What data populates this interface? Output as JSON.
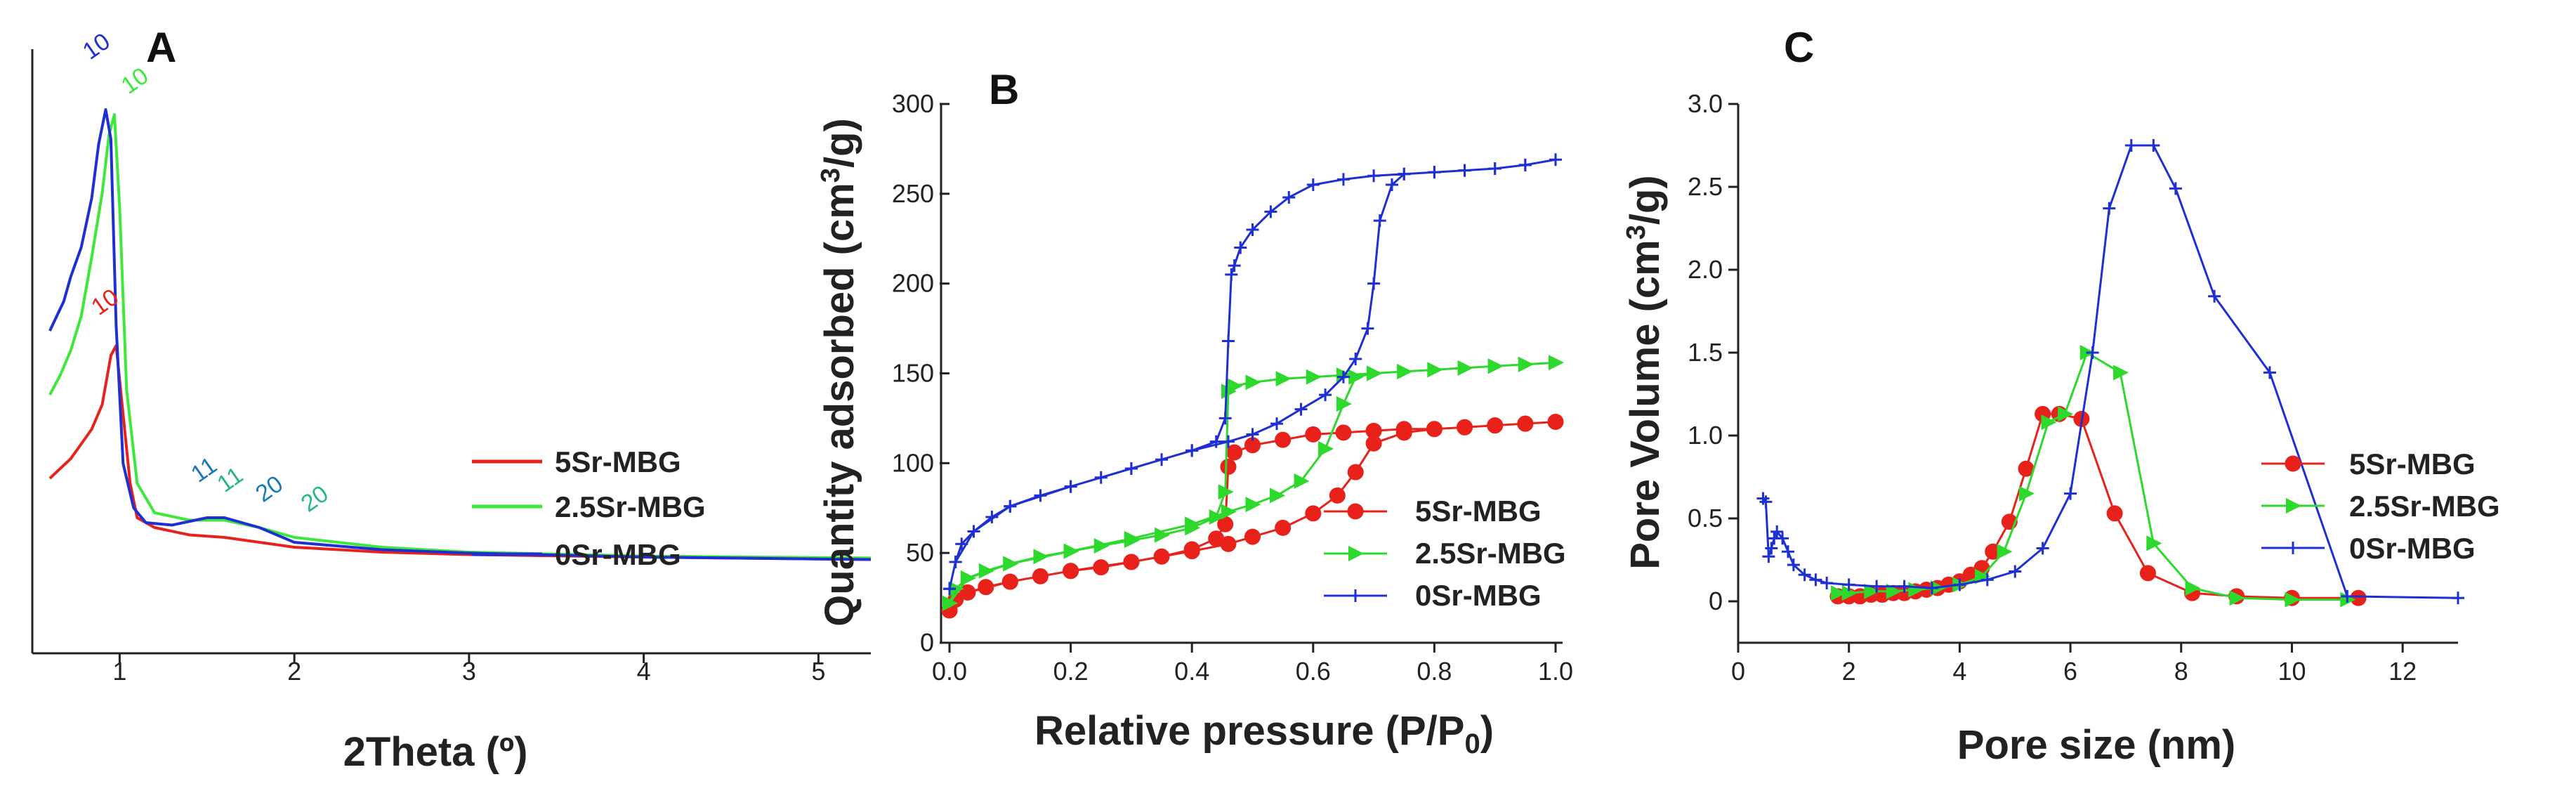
{
  "chart_data": [
    {
      "panel": "A",
      "type": "line",
      "xlabel": "2Theta (º)",
      "ylabel": "",
      "xlim": [
        0.5,
        5.3
      ],
      "xticks": [
        1,
        2,
        3,
        4,
        5
      ],
      "yticks": [],
      "legend_position": "right",
      "series": [
        {
          "name": "5Sr-MBG",
          "color": "#e8221b",
          "x": [
            0.6,
            0.66,
            0.72,
            0.78,
            0.84,
            0.9,
            0.95,
            0.98,
            1.02,
            1.06,
            1.1,
            1.2,
            1.4,
            1.6,
            1.8,
            2.0,
            2.5,
            3.0,
            4.0,
            5.3
          ],
          "y": [
            0.27,
            0.29,
            0.31,
            0.34,
            0.37,
            0.42,
            0.52,
            0.54,
            0.4,
            0.26,
            0.19,
            0.17,
            0.155,
            0.15,
            0.14,
            0.13,
            0.12,
            0.115,
            0.11,
            0.105
          ]
        },
        {
          "name": "2.5Sr-MBG",
          "color": "#3ee83a",
          "x": [
            0.6,
            0.66,
            0.72,
            0.78,
            0.84,
            0.9,
            0.94,
            0.97,
            1.0,
            1.04,
            1.1,
            1.2,
            1.4,
            1.6,
            1.8,
            2.0,
            2.5,
            3.0,
            4.0,
            5.3
          ],
          "y": [
            0.44,
            0.48,
            0.53,
            0.6,
            0.72,
            0.85,
            0.97,
            1.01,
            0.82,
            0.45,
            0.26,
            0.2,
            0.185,
            0.185,
            0.17,
            0.15,
            0.13,
            0.12,
            0.112,
            0.108
          ]
        },
        {
          "name": "0Sr-MBG",
          "color": "#1e2fd4",
          "x": [
            0.6,
            0.64,
            0.68,
            0.72,
            0.78,
            0.84,
            0.88,
            0.92,
            0.95,
            0.98,
            1.02,
            1.08,
            1.15,
            1.3,
            1.5,
            1.6,
            1.8,
            2.0,
            2.5,
            3.0,
            4.0,
            5.3
          ],
          "y": [
            0.57,
            0.6,
            0.63,
            0.68,
            0.74,
            0.84,
            0.95,
            1.02,
            0.96,
            0.58,
            0.3,
            0.21,
            0.18,
            0.175,
            0.19,
            0.19,
            0.17,
            0.14,
            0.125,
            0.118,
            0.11,
            0.105
          ]
        }
      ],
      "annotations": [
        {
          "text": "10",
          "x": 0.83,
          "y": 1.12,
          "color": "#1e2fd4"
        },
        {
          "text": "10",
          "x": 1.05,
          "y": 1.05,
          "color": "#3ee83a"
        },
        {
          "text": "10",
          "x": 0.88,
          "y": 0.6,
          "color": "#e8221b"
        },
        {
          "text": "11",
          "x": 1.45,
          "y": 0.26,
          "color": "#1a7ab8"
        },
        {
          "text": "11",
          "x": 1.6,
          "y": 0.24,
          "color": "#2bb58e"
        },
        {
          "text": "20",
          "x": 1.82,
          "y": 0.22,
          "color": "#1a7ab8"
        },
        {
          "text": "20",
          "x": 2.08,
          "y": 0.2,
          "color": "#2bb58e"
        }
      ]
    },
    {
      "panel": "B",
      "type": "line",
      "xlabel": "Relative pressure (P/P0)",
      "ylabel": "Quantity adsorbed (cm3/g)",
      "xlim": [
        0.0,
        1.0
      ],
      "ylim": [
        0,
        300
      ],
      "xticks": [
        0.0,
        0.2,
        0.4,
        0.6,
        0.8,
        1.0
      ],
      "yticks": [
        0,
        50,
        100,
        150,
        200,
        250,
        300
      ],
      "legend_position": "lower-right",
      "series": [
        {
          "name": "5Sr-MBG",
          "color": "#e8221b",
          "marker": "circle",
          "x": [
            0.0,
            0.01,
            0.03,
            0.06,
            0.1,
            0.15,
            0.2,
            0.25,
            0.3,
            0.35,
            0.4,
            0.44,
            0.455,
            0.46,
            0.47,
            0.5,
            0.55,
            0.6,
            0.65,
            0.7,
            0.75,
            0.8,
            0.85,
            0.9,
            0.95,
            1.0,
            0.95,
            0.9,
            0.85,
            0.8,
            0.75,
            0.7,
            0.67,
            0.64,
            0.6,
            0.55,
            0.5,
            0.46,
            0.4,
            0.3,
            0.2,
            0.1,
            0.03,
            0.0
          ],
          "y": [
            18,
            24,
            28,
            31,
            34,
            37,
            40,
            42,
            45,
            48,
            52,
            58,
            66,
            98,
            106,
            110,
            113,
            116,
            117,
            118,
            119,
            119,
            120,
            121,
            122,
            123,
            122,
            121,
            120,
            119,
            117,
            111,
            95,
            82,
            72,
            64,
            59,
            55,
            51,
            45,
            40,
            34,
            28,
            18
          ]
        },
        {
          "name": "2.5Sr-MBG",
          "color": "#2dd92d",
          "marker": "triangle-right",
          "x": [
            0.0,
            0.01,
            0.03,
            0.06,
            0.1,
            0.15,
            0.2,
            0.25,
            0.3,
            0.35,
            0.4,
            0.44,
            0.455,
            0.46,
            0.47,
            0.5,
            0.55,
            0.6,
            0.65,
            0.7,
            0.75,
            0.8,
            0.85,
            0.9,
            0.95,
            1.0,
            0.95,
            0.9,
            0.85,
            0.8,
            0.75,
            0.7,
            0.67,
            0.65,
            0.62,
            0.58,
            0.54,
            0.5,
            0.46,
            0.4,
            0.3,
            0.2,
            0.1,
            0.03,
            0.0
          ],
          "y": [
            22,
            30,
            36,
            40,
            44,
            48,
            51,
            54,
            57,
            60,
            64,
            70,
            84,
            140,
            143,
            145,
            147,
            148,
            149,
            150,
            151,
            152,
            153,
            154,
            155,
            156,
            155,
            154,
            153,
            152,
            151,
            150,
            148,
            133,
            108,
            90,
            82,
            77,
            73,
            66,
            58,
            51,
            44,
            36,
            22
          ]
        },
        {
          "name": "0Sr-MBG",
          "color": "#1e2fd4",
          "marker": "plus",
          "x": [
            0.0,
            0.01,
            0.02,
            0.04,
            0.07,
            0.1,
            0.15,
            0.2,
            0.25,
            0.3,
            0.35,
            0.4,
            0.44,
            0.455,
            0.46,
            0.465,
            0.47,
            0.48,
            0.5,
            0.53,
            0.56,
            0.6,
            0.65,
            0.7,
            0.75,
            0.8,
            0.85,
            0.9,
            0.95,
            1.0,
            0.95,
            0.9,
            0.85,
            0.8,
            0.75,
            0.73,
            0.71,
            0.7,
            0.69,
            0.67,
            0.65,
            0.62,
            0.58,
            0.54,
            0.5,
            0.46,
            0.4,
            0.3,
            0.2,
            0.1,
            0.04,
            0.01,
            0.0
          ],
          "y": [
            30,
            45,
            55,
            62,
            70,
            76,
            82,
            87,
            92,
            97,
            102,
            107,
            112,
            125,
            168,
            205,
            210,
            220,
            230,
            240,
            248,
            255,
            258,
            260,
            261,
            262,
            263,
            264,
            266,
            269,
            266,
            264,
            263,
            262,
            261,
            255,
            235,
            200,
            175,
            158,
            148,
            138,
            130,
            122,
            116,
            112,
            107,
            97,
            87,
            76,
            62,
            45,
            30
          ]
        }
      ]
    },
    {
      "panel": "C",
      "type": "line",
      "xlabel": "Pore size (nm)",
      "ylabel": "Pore Volume (cm3/g)",
      "xlim": [
        0,
        13
      ],
      "ylim": [
        -0.25,
        3.0
      ],
      "xticks": [
        0,
        2,
        4,
        6,
        8,
        10,
        12
      ],
      "yticks": [
        0,
        0.5,
        1.0,
        1.5,
        2.0,
        2.5,
        3.0
      ],
      "legend_position": "right",
      "series": [
        {
          "name": "5Sr-MBG",
          "color": "#e8221b",
          "marker": "circle",
          "x": [
            1.8,
            2.0,
            2.2,
            2.4,
            2.6,
            2.8,
            3.0,
            3.2,
            3.4,
            3.6,
            3.8,
            4.0,
            4.2,
            4.4,
            4.6,
            4.9,
            5.2,
            5.5,
            5.8,
            6.2,
            6.8,
            7.4,
            8.2,
            9.0,
            10.0,
            11.2
          ],
          "y": [
            0.03,
            0.03,
            0.03,
            0.04,
            0.04,
            0.05,
            0.05,
            0.06,
            0.07,
            0.08,
            0.1,
            0.12,
            0.16,
            0.2,
            0.3,
            0.48,
            0.8,
            1.13,
            1.13,
            1.1,
            0.53,
            0.17,
            0.05,
            0.03,
            0.02,
            0.02
          ]
        },
        {
          "name": "2.5Sr-MBG",
          "color": "#2dd92d",
          "marker": "triangle-right",
          "x": [
            1.8,
            2.0,
            2.4,
            2.8,
            3.2,
            3.6,
            4.0,
            4.4,
            4.8,
            5.2,
            5.6,
            5.9,
            6.3,
            6.9,
            7.5,
            8.2,
            9.0,
            10.0,
            11.0
          ],
          "y": [
            0.05,
            0.05,
            0.06,
            0.06,
            0.07,
            0.08,
            0.1,
            0.15,
            0.3,
            0.65,
            1.08,
            1.13,
            1.5,
            1.38,
            0.35,
            0.08,
            0.02,
            0.01,
            0.01
          ]
        },
        {
          "name": "0Sr-MBG",
          "color": "#1e2fd4",
          "marker": "plus",
          "x": [
            0.45,
            0.5,
            0.55,
            0.6,
            0.65,
            0.7,
            0.8,
            0.9,
            1.0,
            1.2,
            1.4,
            1.6,
            2.0,
            2.5,
            3.0,
            3.5,
            4.0,
            4.5,
            5.0,
            5.5,
            6.0,
            6.4,
            6.7,
            7.1,
            7.5,
            7.9,
            8.6,
            9.6,
            11.0,
            13.0
          ],
          "y": [
            0.62,
            0.6,
            0.27,
            0.32,
            0.38,
            0.42,
            0.38,
            0.3,
            0.22,
            0.16,
            0.13,
            0.11,
            0.1,
            0.09,
            0.09,
            0.08,
            0.1,
            0.13,
            0.18,
            0.32,
            0.65,
            1.5,
            2.37,
            2.75,
            2.75,
            2.49,
            1.84,
            1.38,
            0.03,
            0.02
          ]
        }
      ]
    }
  ],
  "panels": [
    {
      "label": "A",
      "xlabel": "2Theta (º)",
      "legend": [
        "5Sr-MBG",
        "2.5Sr-MBG",
        "0Sr-MBG"
      ]
    },
    {
      "label": "B",
      "xlabel_main": "Relative pressure (P/P",
      "xlabel_sub": "0",
      "xlabel_end": ")",
      "ylabel_main": "Quantity adsorbed (cm",
      "ylabel_sup": "3",
      "ylabel_end": "/g)",
      "legend": [
        "5Sr-MBG",
        "2.5Sr-MBG",
        "0Sr-MBG"
      ]
    },
    {
      "label": "C",
      "xlabel": "Pore size (nm)",
      "ylabel_main": "Pore Volume (cm",
      "ylabel_sup": "3",
      "ylabel_end": "/g)",
      "legend": [
        "5Sr-MBG",
        "2.5Sr-MBG",
        "0Sr-MBG"
      ]
    }
  ]
}
